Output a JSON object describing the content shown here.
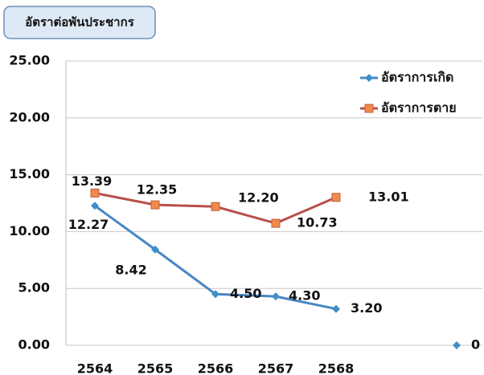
{
  "chart_data": {
    "type": "line",
    "title": "อัตราต่อพันประชากร",
    "categories": [
      "2564",
      "2565",
      "2566",
      "2567",
      "2568",
      null,
      null
    ],
    "series": [
      {
        "name": "อัตราการเกิด",
        "color": "#4a86c5",
        "marker_color": "#3f8fc8",
        "marker": "diamond",
        "values": [
          12.27,
          8.42,
          4.5,
          4.3,
          3.2,
          null,
          0
        ],
        "value_labels": [
          "12.27",
          "8.42",
          "4.50",
          "4.30",
          "3.20",
          null,
          "0"
        ]
      },
      {
        "name": "อัตราการตาย",
        "color": "#b9504a",
        "marker_color": "#f08a4b",
        "marker": "square",
        "values": [
          13.39,
          12.35,
          12.2,
          10.73,
          13.01,
          null,
          null
        ],
        "value_labels": [
          "13.39",
          "12.35",
          "12.20",
          "10.73",
          "13.01",
          null,
          null
        ]
      }
    ],
    "ylim": [
      0,
      25
    ],
    "yticks": [
      {
        "value": 0,
        "label": "0.00"
      },
      {
        "value": 5,
        "label": "5.00"
      },
      {
        "value": 10,
        "label": "10.00"
      },
      {
        "value": 15,
        "label": "15.00"
      },
      {
        "value": 20,
        "label": "20.00"
      },
      {
        "value": 25,
        "label": "25.00"
      }
    ],
    "grid": true,
    "legend": "top-right"
  }
}
